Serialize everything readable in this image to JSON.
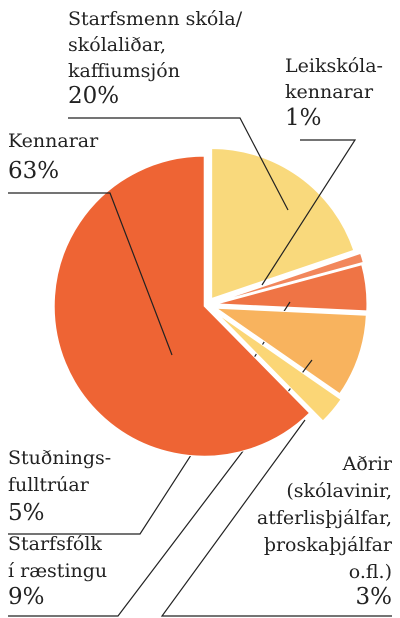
{
  "chart_data": {
    "type": "pie",
    "categories": [
      [
        "Starfsmenn skóla/",
        "skólaliðar,",
        "kaffiumsjón"
      ],
      [
        "Leikskóla-",
        "kennarar"
      ],
      [
        "Stuðnings-",
        "fulltrúar"
      ],
      [
        "Starfsfólk",
        "í ræstingu"
      ],
      [
        "Aðrir",
        "(skólavinir,",
        "atferlisþjálfar,",
        "þroskaþjálfar",
        "o.fl.)"
      ],
      [
        "Kennarar"
      ]
    ],
    "values": [
      20,
      1,
      5,
      9,
      3,
      63
    ],
    "value_labels": [
      "20%",
      "1%",
      "5%",
      "9%",
      "3%",
      "63%"
    ],
    "colors": [
      "#f9d97c",
      "#f2875c",
      "#ef7445",
      "#f8b35e",
      "#fbd676",
      "#ee6434"
    ]
  }
}
